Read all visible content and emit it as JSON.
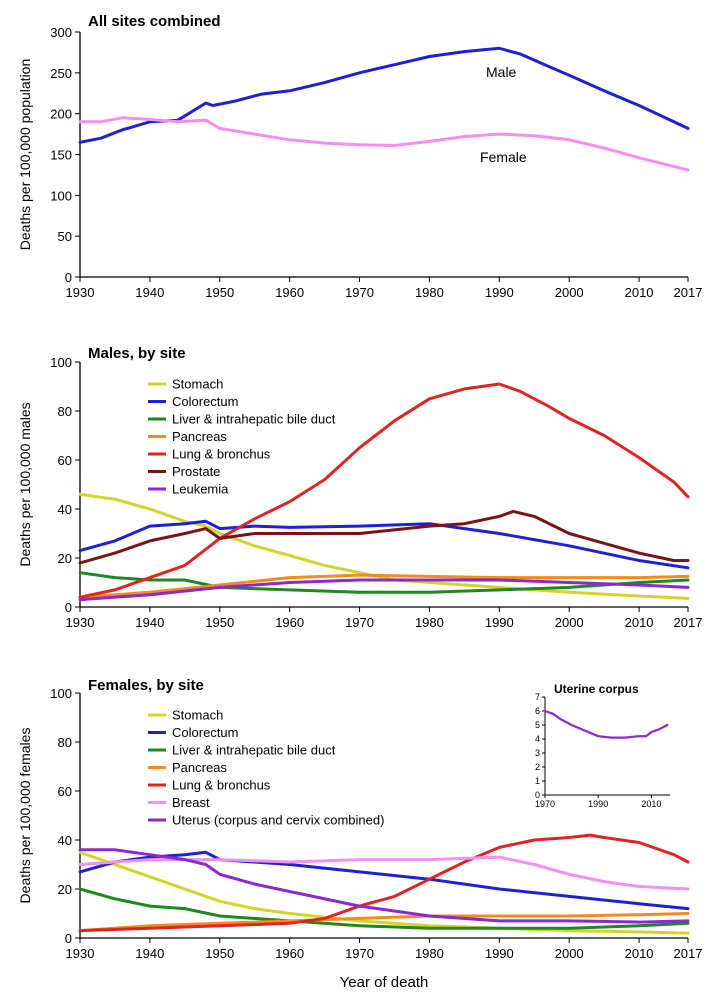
{
  "chart_data": [
    {
      "type": "line",
      "title": "All sites combined",
      "xlabel": "",
      "ylabel": "Deaths per 100,000 population",
      "xlim": [
        1930,
        2017
      ],
      "ylim": [
        0,
        300
      ],
      "xticks": [
        1930,
        1940,
        1950,
        1960,
        1970,
        1980,
        1990,
        2000,
        2010,
        2017
      ],
      "yticks": [
        0,
        50,
        100,
        150,
        200,
        250,
        300
      ],
      "legend": "inline labels",
      "series": [
        {
          "name": "Male",
          "color": "#1f1fd6",
          "x": [
            1930,
            1933,
            1936,
            1940,
            1944,
            1948,
            1949,
            1952,
            1956,
            1960,
            1965,
            1970,
            1975,
            1980,
            1985,
            1990,
            1993,
            1997,
            2000,
            2005,
            2010,
            2017
          ],
          "y": [
            165,
            170,
            180,
            190,
            192,
            213,
            210,
            215,
            224,
            228,
            238,
            250,
            260,
            270,
            276,
            280,
            273,
            258,
            247,
            228,
            210,
            182
          ]
        },
        {
          "name": "Female",
          "color": "#f58ef3",
          "x": [
            1930,
            1933,
            1936,
            1940,
            1944,
            1948,
            1950,
            1955,
            1960,
            1965,
            1970,
            1975,
            1980,
            1985,
            1990,
            1995,
            2000,
            2005,
            2010,
            2017
          ],
          "y": [
            190,
            190,
            195,
            193,
            190,
            192,
            182,
            175,
            168,
            164,
            162,
            161,
            166,
            172,
            175,
            173,
            168,
            158,
            146,
            131
          ]
        }
      ]
    },
    {
      "type": "line",
      "title": "Males, by site",
      "xlabel": "",
      "ylabel": "Deaths per 100,000 males",
      "xlim": [
        1930,
        2017
      ],
      "ylim": [
        0,
        100
      ],
      "xticks": [
        1930,
        1940,
        1950,
        1960,
        1970,
        1980,
        1990,
        2000,
        2010,
        2017
      ],
      "yticks": [
        0,
        20,
        40,
        60,
        80,
        100
      ],
      "legend": "top-left",
      "series": [
        {
          "name": "Stomach",
          "color": "#d4d428",
          "x": [
            1930,
            1935,
            1940,
            1945,
            1948,
            1950,
            1955,
            1960,
            1965,
            1970,
            1975,
            1980,
            1990,
            2000,
            2010,
            2017
          ],
          "y": [
            46,
            44,
            40,
            35,
            33,
            30,
            25,
            21,
            17,
            14,
            11,
            10,
            8,
            6,
            4.5,
            3.5
          ]
        },
        {
          "name": "Colorectum",
          "color": "#1f1fd6",
          "x": [
            1930,
            1935,
            1940,
            1945,
            1948,
            1950,
            1955,
            1960,
            1970,
            1980,
            1985,
            1990,
            2000,
            2010,
            2017
          ],
          "y": [
            23,
            27,
            33,
            34,
            35,
            32,
            33,
            32.5,
            33,
            34,
            32,
            30,
            25,
            19,
            16
          ]
        },
        {
          "name": "Liver & intrahepatic bile duct",
          "color": "#1e8a1e",
          "x": [
            1930,
            1935,
            1940,
            1945,
            1950,
            1960,
            1970,
            1980,
            1990,
            2000,
            2010,
            2017
          ],
          "y": [
            14,
            12,
            11,
            11,
            8,
            7,
            6,
            6,
            7,
            8,
            10,
            11
          ]
        },
        {
          "name": "Pancreas",
          "color": "#f28c1c",
          "x": [
            1930,
            1940,
            1950,
            1960,
            1970,
            1980,
            1990,
            2000,
            2010,
            2017
          ],
          "y": [
            4,
            6,
            9,
            12,
            13,
            12.5,
            12,
            12,
            12,
            12.5
          ]
        },
        {
          "name": "Lung & bronchus",
          "color": "#e02424",
          "x": [
            1930,
            1935,
            1940,
            1945,
            1950,
            1955,
            1960,
            1965,
            1970,
            1975,
            1980,
            1985,
            1990,
            1993,
            1997,
            2000,
            2005,
            2010,
            2015,
            2017
          ],
          "y": [
            4,
            7,
            12,
            17,
            28,
            36,
            43,
            52,
            65,
            76,
            85,
            89,
            91,
            88,
            82,
            77,
            70,
            61,
            51,
            45
          ]
        },
        {
          "name": "Prostate",
          "color": "#7a1414",
          "x": [
            1930,
            1935,
            1940,
            1945,
            1948,
            1950,
            1955,
            1960,
            1970,
            1980,
            1985,
            1990,
            1992,
            1995,
            2000,
            2005,
            2010,
            2015,
            2017
          ],
          "y": [
            18,
            22,
            27,
            30,
            32,
            28,
            30,
            30,
            30,
            33,
            34,
            37,
            39,
            37,
            30,
            26,
            22,
            19,
            19
          ]
        },
        {
          "name": "Leukemia",
          "color": "#8a28d4",
          "x": [
            1930,
            1940,
            1950,
            1960,
            1970,
            1980,
            1990,
            2000,
            2010,
            2017
          ],
          "y": [
            3,
            5,
            8,
            10,
            11,
            11,
            11,
            10,
            9,
            8
          ]
        }
      ]
    },
    {
      "type": "line",
      "title": "Females, by site",
      "xlabel": "Year of death",
      "ylabel": "Deaths per 100,000 females",
      "xlim": [
        1930,
        2017
      ],
      "ylim": [
        0,
        100
      ],
      "xticks": [
        1930,
        1940,
        1950,
        1960,
        1970,
        1980,
        1990,
        2000,
        2010,
        2017
      ],
      "yticks": [
        0,
        20,
        40,
        60,
        80,
        100
      ],
      "legend": "top-left",
      "series": [
        {
          "name": "Stomach",
          "color": "#d4d428",
          "x": [
            1930,
            1935,
            1940,
            1945,
            1950,
            1955,
            1960,
            1970,
            1980,
            1990,
            2000,
            2010,
            2017
          ],
          "y": [
            35,
            30,
            25,
            20,
            15,
            12,
            10,
            7,
            5,
            4,
            3,
            2.5,
            2
          ]
        },
        {
          "name": "Colorectum",
          "color": "#1f1fd6",
          "x": [
            1930,
            1935,
            1940,
            1945,
            1948,
            1950,
            1960,
            1970,
            1980,
            1990,
            2000,
            2010,
            2017
          ],
          "y": [
            27,
            31,
            33,
            34,
            35,
            32,
            30,
            27,
            24,
            20,
            17,
            14,
            12
          ]
        },
        {
          "name": "Liver & intrahepatic bile duct",
          "color": "#1e8a1e",
          "x": [
            1930,
            1935,
            1940,
            1945,
            1950,
            1960,
            1970,
            1980,
            1990,
            2000,
            2010,
            2017
          ],
          "y": [
            20,
            16,
            13,
            12,
            9,
            7,
            5,
            4,
            4,
            4,
            5,
            6
          ]
        },
        {
          "name": "Pancreas",
          "color": "#f28c1c",
          "x": [
            1930,
            1940,
            1950,
            1960,
            1970,
            1980,
            1990,
            2000,
            2010,
            2017
          ],
          "y": [
            3,
            5,
            6,
            7,
            8,
            9,
            9,
            9,
            9.5,
            10
          ]
        },
        {
          "name": "Lung & bronchus",
          "color": "#e02424",
          "x": [
            1930,
            1940,
            1950,
            1960,
            1965,
            1970,
            1975,
            1980,
            1985,
            1990,
            1995,
            2000,
            2003,
            2005,
            2010,
            2015,
            2017
          ],
          "y": [
            3,
            4,
            5,
            6,
            8,
            13,
            17,
            24,
            31,
            37,
            40,
            41,
            42,
            41,
            39,
            34,
            31
          ]
        },
        {
          "name": "Breast",
          "color": "#f58ef3",
          "x": [
            1930,
            1940,
            1950,
            1960,
            1970,
            1980,
            1990,
            1995,
            2000,
            2005,
            2010,
            2017
          ],
          "y": [
            30,
            32,
            32,
            31,
            32,
            32,
            33,
            30,
            26,
            23,
            21,
            20
          ]
        },
        {
          "name": "Uterus (corpus and cervix combined)",
          "color": "#8a28d4",
          "x": [
            1930,
            1935,
            1940,
            1945,
            1948,
            1950,
            1955,
            1960,
            1970,
            1980,
            1990,
            2000,
            2010,
            2017
          ],
          "y": [
            36,
            36,
            34,
            32,
            30,
            26,
            22,
            19,
            13,
            9,
            7,
            7,
            6.5,
            7
          ]
        }
      ]
    },
    {
      "type": "line",
      "title": "Uterine corpus",
      "xlabel": "",
      "ylabel": "",
      "xlim": [
        1970,
        2017
      ],
      "ylim": [
        0,
        7
      ],
      "xticks": [
        1970,
        1990,
        2010
      ],
      "yticks": [
        0,
        1,
        2,
        3,
        4,
        5,
        6,
        7
      ],
      "series": [
        {
          "name": "",
          "color": "#8a28d4",
          "x": [
            1970,
            1973,
            1976,
            1980,
            1985,
            1990,
            1995,
            2000,
            2005,
            2008,
            2010,
            2013,
            2016
          ],
          "y": [
            6.0,
            5.8,
            5.4,
            5.0,
            4.6,
            4.2,
            4.1,
            4.1,
            4.2,
            4.2,
            4.5,
            4.7,
            5.0
          ]
        }
      ]
    }
  ]
}
